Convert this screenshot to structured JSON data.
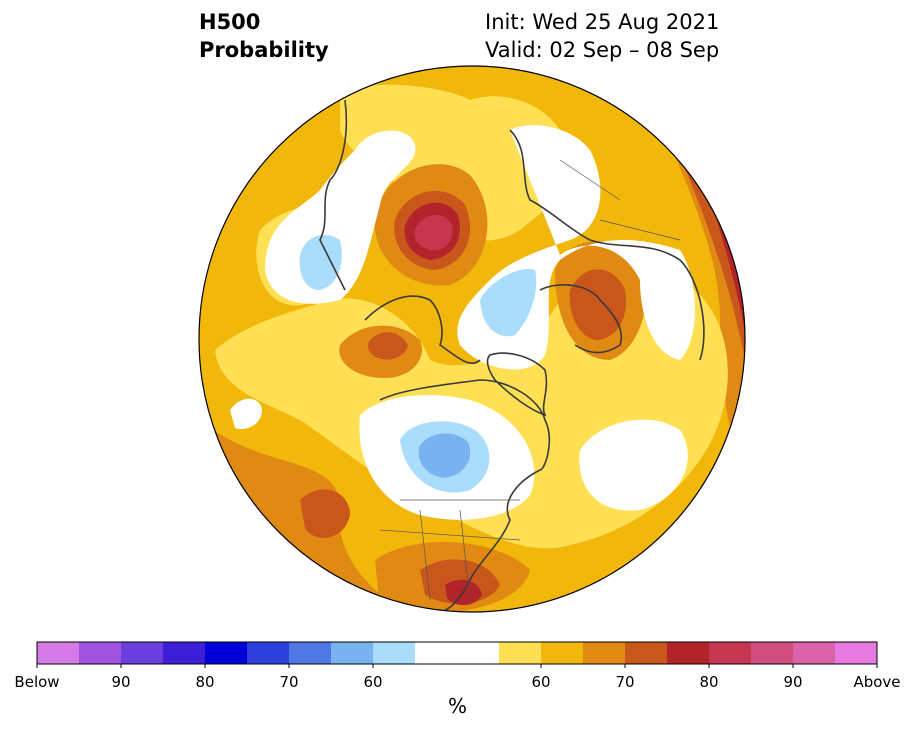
{
  "header": {
    "title_line1": "H500",
    "title_line2": "Probability",
    "init": "Init: Wed 25 Aug 2021",
    "valid": "Valid: 02 Sep – 08 Sep"
  },
  "colorbar": {
    "unit": "%",
    "colors": [
      "#d67ae8",
      "#a052e0",
      "#6b3ee0",
      "#3c1fd6",
      "#0000d8",
      "#2d3fdc",
      "#4f78e6",
      "#79b2f0",
      "#aadcfc",
      "#ffffff",
      "#ffffff",
      "#ffe054",
      "#f2b70b",
      "#e08a14",
      "#c9561b",
      "#b3242a",
      "#c63650",
      "#d14f7e",
      "#da63aa",
      "#e67ae0"
    ],
    "tick_labels": [
      {
        "index": 0,
        "text": "Below"
      },
      {
        "index": 2,
        "text": "90"
      },
      {
        "index": 4,
        "text": "80"
      },
      {
        "index": 6,
        "text": "70"
      },
      {
        "index": 8,
        "text": "60"
      },
      {
        "index": 12,
        "text": "60"
      },
      {
        "index": 14,
        "text": "70"
      },
      {
        "index": 16,
        "text": "80"
      },
      {
        "index": 18,
        "text": "90"
      },
      {
        "index": 20,
        "text": "Above"
      }
    ]
  },
  "map": {
    "projection": "north-polar-stereographic",
    "background_color": "#f2b70b"
  }
}
